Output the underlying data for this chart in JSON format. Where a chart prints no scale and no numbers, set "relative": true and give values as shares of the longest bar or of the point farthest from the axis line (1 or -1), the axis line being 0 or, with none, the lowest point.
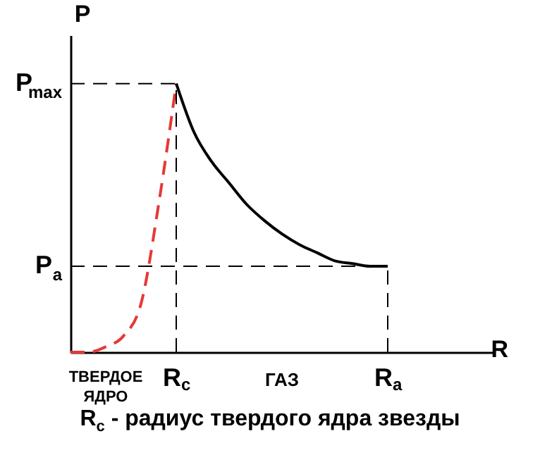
{
  "chart_data": {
    "type": "line",
    "relative": true,
    "xlabel": "R",
    "ylabel": "P",
    "categories": [
      null,
      null,
      null,
      null,
      null,
      null,
      "R$_{c}$",
      null,
      null,
      null,
      null,
      null,
      null,
      null,
      null,
      null,
      null,
      null,
      "R$_{a}$"
    ],
    "series": [
      {
        "color": "#e53935",
        "line_style": "dashed",
        "values": [
          0,
          0,
          0.02,
          0.06,
          0.18,
          0.55,
          1,
          null,
          null,
          null,
          null,
          null,
          null,
          null,
          null,
          null,
          null,
          null,
          null
        ]
      },
      {
        "color": "#000000",
        "line_style": "solid",
        "values": [
          null,
          null,
          null,
          null,
          null,
          null,
          1,
          0.82,
          0.71,
          0.63,
          0.55,
          0.49,
          0.44,
          0.4,
          0.37,
          0.34,
          0.33,
          0.32,
          0.32
        ]
      }
    ],
    "ref_lines": [
      {
        "axis": "y",
        "value": 1,
        "label": "P$_{max}$"
      },
      {
        "axis": "y",
        "value": 0.32,
        "label": "P$_{a}$"
      },
      {
        "axis": "x",
        "value": "R$_{c}$"
      },
      {
        "axis": "x",
        "value": "R$_{a}$"
      }
    ],
    "annotations": [
      "ТВЕРДОЕ ЯДРО",
      "ГАЗ",
      "R$_{c}$ - радиус твердого ядра звезды"
    ]
  }
}
